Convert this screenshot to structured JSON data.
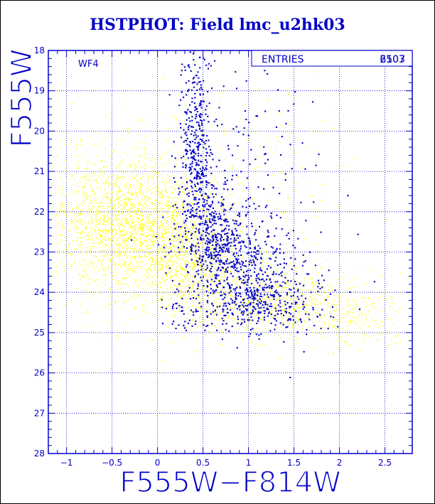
{
  "chart_data": {
    "type": "scatter",
    "title": "HSTPHOT: Field lmc_u2hk03",
    "xlabel": "F555W−F814W",
    "ylabel": "F555W",
    "xlim": [
      -1.2,
      2.8
    ],
    "ylim": [
      28,
      18
    ],
    "y_inverted": true,
    "x_ticks": [
      -1,
      -0.5,
      0,
      0.5,
      1,
      1.5,
      2,
      2.5
    ],
    "x_tick_labels": [
      "−1",
      "−0.5",
      "0",
      "0.5",
      "1",
      "1.5",
      "2",
      "2.5"
    ],
    "y_ticks": [
      18,
      19,
      20,
      21,
      22,
      23,
      24,
      25,
      26,
      27,
      28
    ],
    "y_tick_labels": [
      "18",
      "19",
      "20",
      "21",
      "22",
      "23",
      "24",
      "25",
      "26",
      "27",
      "28"
    ],
    "grid": true,
    "annotation": "WF4",
    "stats_box": {
      "label": "ENTRIES",
      "value": "2507",
      "value_overprint": "6103"
    },
    "series": [
      {
        "color": "#ffff00",
        "seed": 3001,
        "clouds": [
          {
            "n": 2000,
            "cx": -0.35,
            "cy": 22.3,
            "sx": 0.45,
            "sy": 0.9,
            "rho": 0.15
          },
          {
            "n": 700,
            "cx": 0.35,
            "cy": 23.3,
            "sx": 0.35,
            "sy": 0.75,
            "rho": 0.3
          },
          {
            "n": 550,
            "cx": 1.35,
            "cy": 24.3,
            "sx": 0.5,
            "sy": 0.45,
            "rho": 0.2
          },
          {
            "n": 250,
            "cx": 0.9,
            "cy": 21.5,
            "sx": 0.6,
            "sy": 1.5,
            "rho": 0
          },
          {
            "n": 160,
            "cx": 2.25,
            "cy": 24.6,
            "sx": 0.3,
            "sy": 0.45,
            "rho": 0
          }
        ]
      },
      {
        "color": "#0000c8",
        "seed": 7121,
        "clouds": [
          {
            "n": 550,
            "cx": 1.0,
            "cy": 23.4,
            "sx": 0.38,
            "sy": 0.75,
            "rho": 0.3
          },
          {
            "n": 380,
            "cx": 0.43,
            "cy": 20.4,
            "sx": 0.09,
            "sy": 1.2,
            "rho": 0
          },
          {
            "n": 330,
            "cx": 0.62,
            "cy": 22.6,
            "sx": 0.18,
            "sy": 0.7,
            "rho": 0.2
          },
          {
            "n": 220,
            "cx": 1.15,
            "cy": 24.4,
            "sx": 0.35,
            "sy": 0.3,
            "rho": 0
          },
          {
            "n": 95,
            "cx": 1.0,
            "cy": 20.5,
            "sx": 0.45,
            "sy": 1.1,
            "rho": 0
          },
          {
            "n": 45,
            "cx": 0.3,
            "cy": 24.4,
            "sx": 0.12,
            "sy": 0.3,
            "rho": 0
          }
        ]
      }
    ]
  },
  "colors": {
    "axis": "#0000c8",
    "grid": "#0000c8",
    "title": "#0000c8",
    "background": "#ffffff"
  }
}
